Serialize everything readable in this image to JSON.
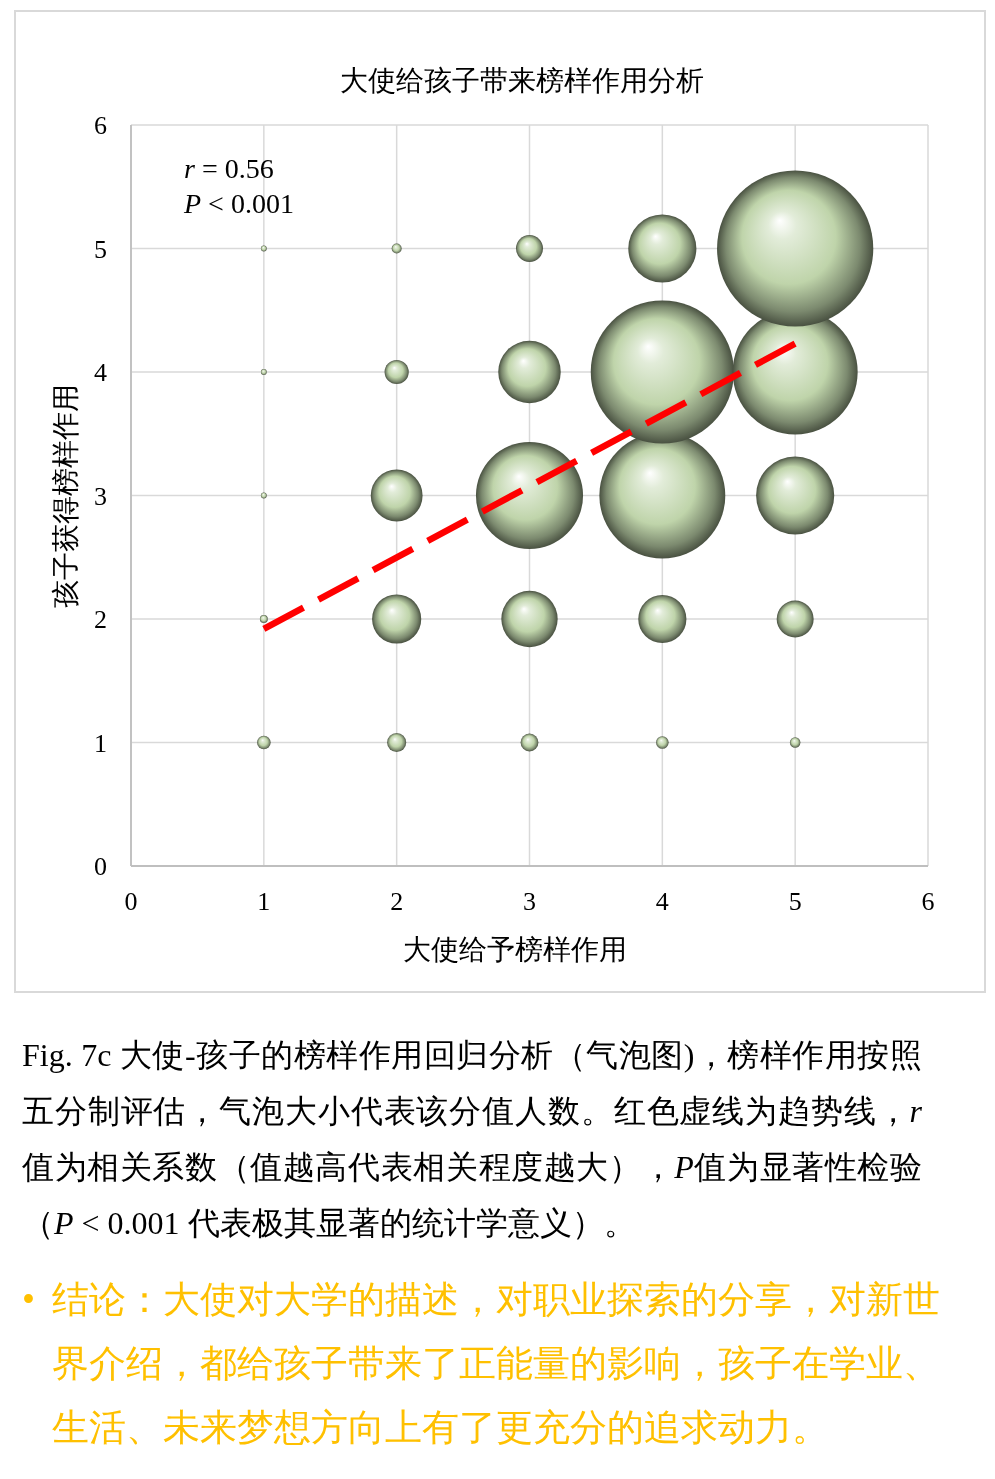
{
  "chart_data": {
    "type": "bubble",
    "title": "大使给孩子带来榜样作用分析",
    "xlabel": "大使给予榜样作用",
    "ylabel": "孩子获得榜样作用",
    "xlim": [
      0,
      6
    ],
    "ylim": [
      0,
      6
    ],
    "xticks": [
      0,
      1,
      2,
      3,
      4,
      5,
      6
    ],
    "yticks": [
      0,
      1,
      2,
      3,
      4,
      5,
      6
    ],
    "grid": true,
    "series": [
      {
        "color": "#bfd4aa",
        "x": [
          1,
          1,
          1,
          1,
          1,
          2,
          2,
          2,
          2,
          2,
          3,
          3,
          3,
          3,
          3,
          4,
          4,
          4,
          4,
          4,
          5,
          5,
          5,
          5,
          5
        ],
        "values": [
          1,
          2,
          3,
          4,
          5,
          1,
          2,
          3,
          4,
          5,
          1,
          2,
          3,
          4,
          5,
          1,
          2,
          3,
          4,
          5,
          1,
          2,
          3,
          4,
          5
        ],
        "sizes": [
          0.0076,
          0.0026,
          0.0014,
          0.0014,
          0.0014,
          0.015,
          0.099,
          0.11,
          0.024,
          0.0041,
          0.013,
          0.13,
          0.47,
          0.16,
          0.03,
          0.0065,
          0.095,
          0.65,
          0.84,
          0.19,
          0.0045,
          0.056,
          0.25,
          0.64,
          1
        ]
      },
      {
        "type": "line",
        "color": "#ff0000",
        "line_style": "dashed",
        "x": [
          1,
          5
        ],
        "values": [
          1.92,
          4.23
        ]
      }
    ],
    "annotations": [
      "r = 0.56",
      "P < 0.001",
      "Fig. 7c 大使-孩子的榜样作用回归分析（气泡图)，榜样作用按照五分制评估，气泡大小代表该分值人数。红色虚线为趋势线，r值为相关系数（值越高代表相关程度越大），P值为显著性检验（P < 0.001 代表极其显著的统计学意义）。",
      "•",
      "结论：大使对大学的描述，对职业探索的分享，对新世界介绍，都给孩子带来了正能量的影响，孩子在学业、生活、未来梦想方向上有了更充分的追求动力。"
    ]
  }
}
